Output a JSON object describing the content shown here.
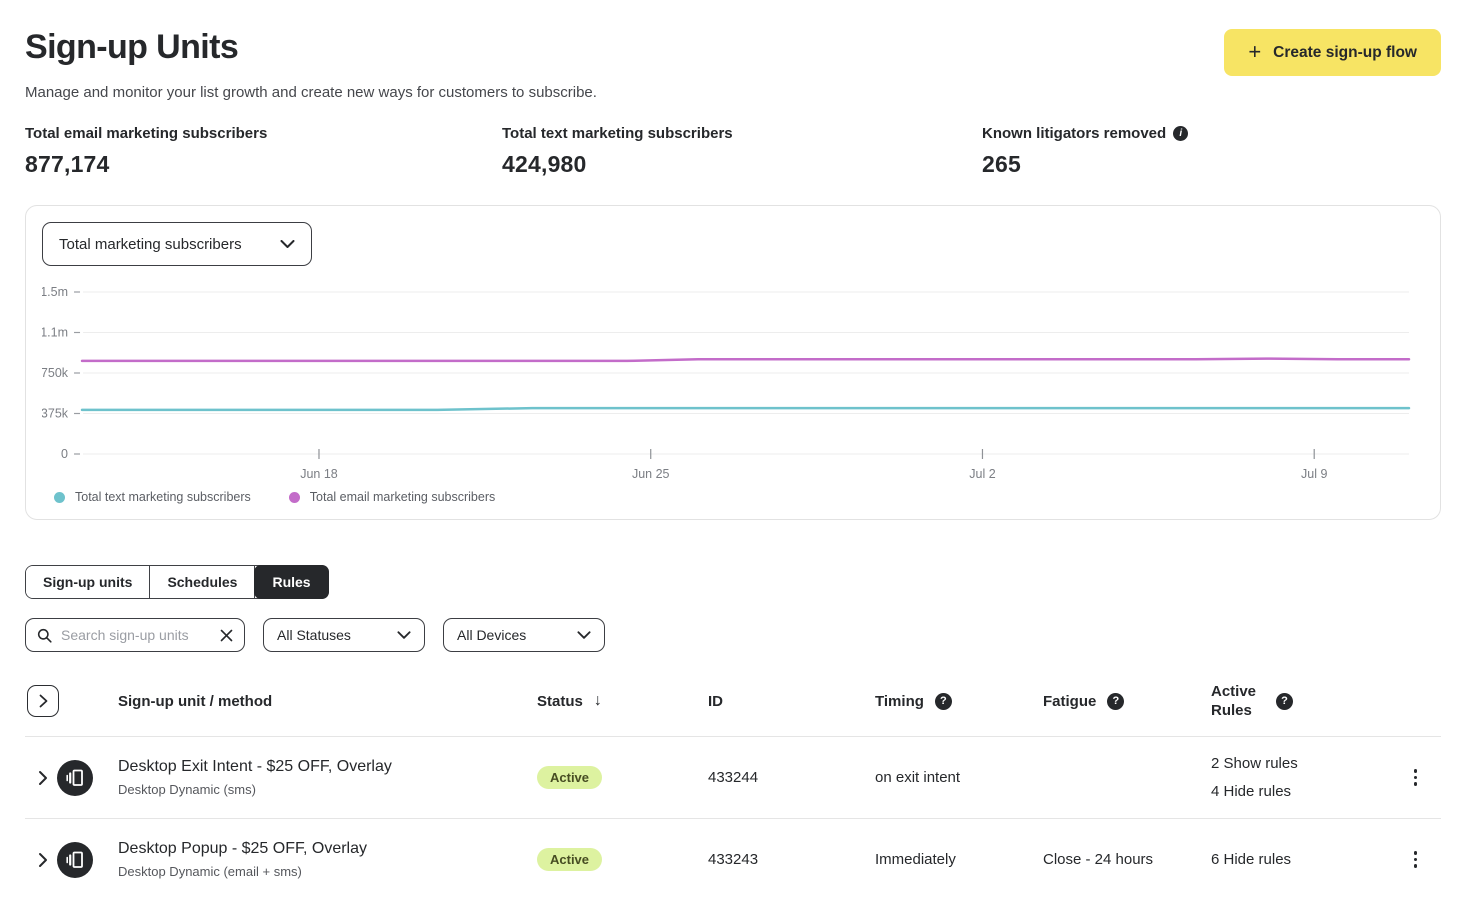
{
  "colors": {
    "accent_yellow": "#f7e464",
    "dark": "#26282b",
    "badge_bg": "#ddf2a0",
    "badge_text": "#474d23"
  },
  "header": {
    "title": "Sign-up Units",
    "subtitle": "Manage and monitor your list growth and create new ways for customers to subscribe.",
    "create_button": "Create sign-up flow",
    "plus": "+"
  },
  "stats": [
    {
      "label": "Total email marketing subscribers",
      "value": "877,174"
    },
    {
      "label": "Total text marketing subscribers",
      "value": "424,980"
    },
    {
      "label": "Known litigators removed",
      "value": "265"
    }
  ],
  "chart": {
    "metric_dropdown": "Total marketing subscribers"
  },
  "chart_data": {
    "type": "line",
    "title": "Total marketing subscribers over time",
    "ylim": [
      0,
      1500000
    ],
    "x_range": [
      0,
      28
    ],
    "grid": true,
    "legend_position": "bottom-left",
    "y_ticks": [
      {
        "label": "1.5m",
        "value": 1500000
      },
      {
        "label": "1.1m",
        "value": 1125000
      },
      {
        "label": "750k",
        "value": 750000
      },
      {
        "label": "375k",
        "value": 375000
      },
      {
        "label": "0",
        "value": 0
      }
    ],
    "x_ticks": [
      {
        "label": "Jun 18",
        "day": 5
      },
      {
        "label": "Jun 25",
        "day": 12
      },
      {
        "label": "Jul 2",
        "day": 19
      },
      {
        "label": "Jul 9",
        "day": 26
      }
    ],
    "series": [
      {
        "name": "Total text marketing subscribers",
        "color": "#6ec2cc",
        "points": [
          [
            0,
            408000
          ],
          [
            7.5,
            408000
          ],
          [
            9.5,
            424980
          ],
          [
            28,
            424980
          ]
        ]
      },
      {
        "name": "Total email marketing subscribers",
        "color": "#c36cc9",
        "points": [
          [
            0,
            862000
          ],
          [
            11.5,
            862000
          ],
          [
            13,
            877174
          ],
          [
            23.5,
            877174
          ],
          [
            25,
            883000
          ],
          [
            26.5,
            877174
          ],
          [
            28,
            877174
          ]
        ]
      }
    ]
  },
  "tabs": [
    {
      "label": "Sign-up units",
      "active": false
    },
    {
      "label": "Schedules",
      "active": false
    },
    {
      "label": "Rules",
      "active": true
    }
  ],
  "filters": {
    "search_placeholder": "Search sign-up units",
    "status_dropdown": "All Statuses",
    "device_dropdown": "All Devices"
  },
  "table": {
    "headers": {
      "unit": "Sign-up unit / method",
      "status": "Status",
      "sort_arrow": "↓",
      "id": "ID",
      "timing": "Timing",
      "fatigue": "Fatigue",
      "active_rules": "Active Rules",
      "help": "?"
    },
    "rows": [
      {
        "name": "Desktop Exit Intent - $25 OFF, Overlay",
        "method": "Desktop Dynamic (sms)",
        "status": "Active",
        "id": "433244",
        "timing": "on exit intent",
        "fatigue": "",
        "rules": [
          "2 Show rules",
          "4 Hide rules"
        ]
      },
      {
        "name": "Desktop Popup - $25 OFF, Overlay",
        "method": "Desktop Dynamic (email + sms)",
        "status": "Active",
        "id": "433243",
        "timing": "Immediately",
        "fatigue": "Close - 24 hours",
        "rules": [
          "6 Hide rules"
        ]
      }
    ]
  }
}
